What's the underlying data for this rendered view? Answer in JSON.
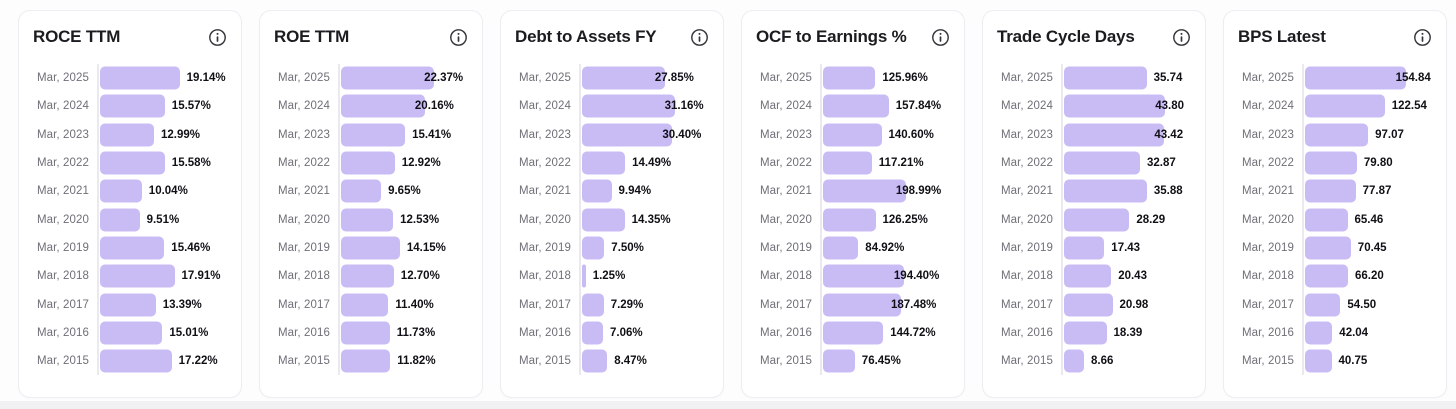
{
  "page": {
    "background": "#fdfdfe",
    "bottom_strip_color": "#f1f1f4"
  },
  "colors": {
    "bar_fill": "#c9bcf5",
    "axis_line": "#e9e9ef",
    "card_background": "#ffffff",
    "card_border": "#ededf2",
    "title_text": "#1b1b20",
    "year_label_text": "#6f6f78",
    "value_label_text": "#101016",
    "info_icon": "#34343a"
  },
  "chart_data": [
    {
      "type": "bar",
      "orientation": "horizontal",
      "title": "ROCE TTM",
      "icon": "info-icon",
      "unit": "%",
      "xlim": [
        0,
        25
      ],
      "grid": false,
      "categories": [
        "Mar, 2025",
        "Mar, 2024",
        "Mar, 2023",
        "Mar, 2022",
        "Mar, 2021",
        "Mar, 2020",
        "Mar, 2019",
        "Mar, 2018",
        "Mar, 2017",
        "Mar, 2016",
        "Mar, 2015"
      ],
      "values": [
        19.14,
        15.57,
        12.99,
        15.58,
        10.04,
        9.51,
        15.46,
        17.91,
        13.39,
        15.01,
        17.22
      ],
      "labels": [
        "19.14%",
        "15.57%",
        "12.99%",
        "15.58%",
        "10.04%",
        "9.51%",
        "15.46%",
        "17.91%",
        "13.39%",
        "15.01%",
        "17.22%"
      ],
      "label_inside": [
        false,
        false,
        false,
        false,
        false,
        false,
        false,
        false,
        false,
        false,
        false
      ]
    },
    {
      "type": "bar",
      "orientation": "horizontal",
      "title": "ROE TTM",
      "icon": "info-icon",
      "unit": "%",
      "xlim": [
        0,
        25
      ],
      "grid": false,
      "categories": [
        "Mar, 2025",
        "Mar, 2024",
        "Mar, 2023",
        "Mar, 2022",
        "Mar, 2021",
        "Mar, 2020",
        "Mar, 2019",
        "Mar, 2018",
        "Mar, 2017",
        "Mar, 2016",
        "Mar, 2015"
      ],
      "values": [
        22.37,
        20.16,
        15.41,
        12.92,
        9.65,
        12.53,
        14.15,
        12.7,
        11.4,
        11.73,
        11.82
      ],
      "labels": [
        "22.37%",
        "20.16%",
        "15.41%",
        "12.92%",
        "9.65%",
        "12.53%",
        "14.15%",
        "12.70%",
        "11.40%",
        "11.73%",
        "11.82%"
      ],
      "label_inside": [
        true,
        true,
        false,
        false,
        false,
        false,
        false,
        false,
        false,
        false,
        false
      ]
    },
    {
      "type": "bar",
      "orientation": "horizontal",
      "title": "Debt to Assets FY",
      "icon": "info-icon",
      "unit": "%",
      "xlim": [
        0,
        35
      ],
      "grid": false,
      "categories": [
        "Mar, 2025",
        "Mar, 2024",
        "Mar, 2023",
        "Mar, 2022",
        "Mar, 2021",
        "Mar, 2020",
        "Mar, 2019",
        "Mar, 2018",
        "Mar, 2017",
        "Mar, 2016",
        "Mar, 2015"
      ],
      "values": [
        27.85,
        31.16,
        30.4,
        14.49,
        9.94,
        14.35,
        7.5,
        1.25,
        7.29,
        7.06,
        8.47
      ],
      "labels": [
        "27.85%",
        "31.16%",
        "30.40%",
        "14.49%",
        "9.94%",
        "14.35%",
        "7.50%",
        "1.25%",
        "7.29%",
        "7.06%",
        "8.47%"
      ],
      "label_inside": [
        true,
        true,
        true,
        false,
        false,
        false,
        false,
        false,
        false,
        false,
        false
      ]
    },
    {
      "type": "bar",
      "orientation": "horizontal",
      "title": "OCF to Earnings %",
      "icon": "info-icon",
      "unit": "%",
      "xlim": [
        0,
        250
      ],
      "grid": false,
      "categories": [
        "Mar, 2025",
        "Mar, 2024",
        "Mar, 2023",
        "Mar, 2022",
        "Mar, 2021",
        "Mar, 2020",
        "Mar, 2019",
        "Mar, 2018",
        "Mar, 2017",
        "Mar, 2016",
        "Mar, 2015"
      ],
      "values": [
        125.96,
        157.84,
        140.6,
        117.21,
        198.99,
        126.25,
        84.92,
        194.4,
        187.48,
        144.72,
        76.45
      ],
      "labels": [
        "125.96%",
        "157.84%",
        "140.60%",
        "117.21%",
        "198.99%",
        "126.25%",
        "84.92%",
        "194.40%",
        "187.48%",
        "144.72%",
        "76.45%"
      ],
      "label_inside": [
        false,
        false,
        false,
        false,
        true,
        false,
        false,
        true,
        true,
        false,
        false
      ]
    },
    {
      "type": "bar",
      "orientation": "horizontal",
      "title": "Trade Cycle Days",
      "icon": "info-icon",
      "unit": "",
      "xlim": [
        0,
        45
      ],
      "grid": false,
      "categories": [
        "Mar, 2025",
        "Mar, 2024",
        "Mar, 2023",
        "Mar, 2022",
        "Mar, 2021",
        "Mar, 2020",
        "Mar, 2019",
        "Mar, 2018",
        "Mar, 2017",
        "Mar, 2016",
        "Mar, 2015"
      ],
      "values": [
        35.74,
        43.8,
        43.42,
        32.87,
        35.88,
        28.29,
        17.43,
        20.43,
        20.98,
        18.39,
        8.66
      ],
      "labels": [
        "35.74",
        "43.80",
        "43.42",
        "32.87",
        "35.88",
        "28.29",
        "17.43",
        "20.43",
        "20.98",
        "18.39",
        "8.66"
      ],
      "label_inside": [
        false,
        true,
        true,
        false,
        false,
        false,
        false,
        false,
        false,
        false,
        false
      ]
    },
    {
      "type": "bar",
      "orientation": "horizontal",
      "title": "BPS Latest",
      "icon": "info-icon",
      "unit": "",
      "xlim": [
        0,
        160
      ],
      "grid": false,
      "categories": [
        "Mar, 2025",
        "Mar, 2024",
        "Mar, 2023",
        "Mar, 2022",
        "Mar, 2021",
        "Mar, 2020",
        "Mar, 2019",
        "Mar, 2018",
        "Mar, 2017",
        "Mar, 2016",
        "Mar, 2015"
      ],
      "values": [
        154.84,
        122.54,
        97.07,
        79.8,
        77.87,
        65.46,
        70.45,
        66.2,
        54.5,
        42.04,
        40.75
      ],
      "labels": [
        "154.84",
        "122.54",
        "97.07",
        "79.80",
        "77.87",
        "65.46",
        "70.45",
        "66.20",
        "54.50",
        "42.04",
        "40.75"
      ],
      "label_inside": [
        true,
        false,
        false,
        false,
        false,
        false,
        false,
        false,
        false,
        false,
        false
      ]
    }
  ]
}
